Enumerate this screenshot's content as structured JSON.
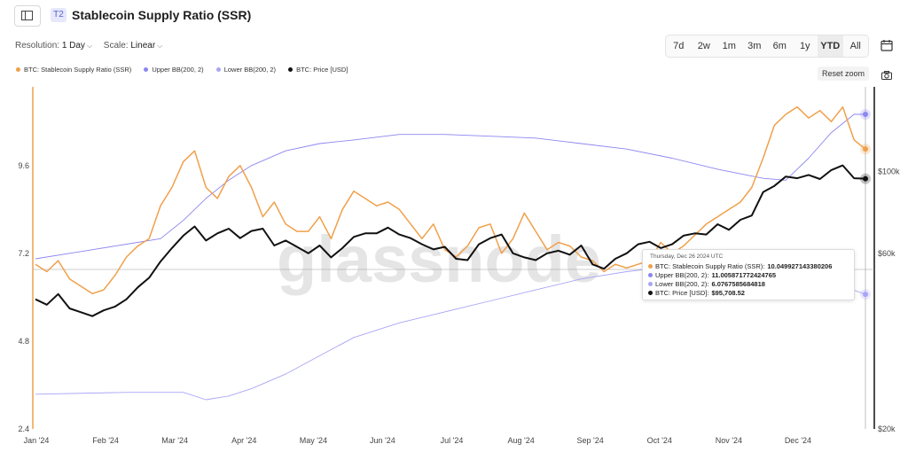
{
  "header": {
    "tier_badge": "T2",
    "title": "Stablecoin Supply Ratio (SSR)",
    "resolution_label": "Resolution:",
    "resolution_value": "1 Day",
    "scale_label": "Scale:",
    "scale_value": "Linear"
  },
  "ranges": [
    {
      "label": "7d",
      "active": false
    },
    {
      "label": "2w",
      "active": false
    },
    {
      "label": "1m",
      "active": false
    },
    {
      "label": "3m",
      "active": false
    },
    {
      "label": "6m",
      "active": false
    },
    {
      "label": "1y",
      "active": false
    },
    {
      "label": "YTD",
      "active": true
    },
    {
      "label": "All",
      "active": false
    }
  ],
  "reset_zoom_label": "Reset zoom",
  "watermark": "glassnode",
  "colors": {
    "ssr": "#f0a04b",
    "upper_bb": "#8c86f0",
    "lower_bb": "#a9a5f6",
    "price": "#111111",
    "left_axis": "#f0a04b",
    "right_axis": "#111111"
  },
  "chart_data": {
    "type": "line",
    "x_label_ticks": [
      "Jan '24",
      "Feb '24",
      "Mar '24",
      "Apr '24",
      "May '24",
      "Jun '24",
      "Jul '24",
      "Aug '24",
      "Sep '24",
      "Oct '24",
      "Nov '24",
      "Dec '24"
    ],
    "x_range_days": [
      0,
      365
    ],
    "left_axis": {
      "ticks": [
        "9.6",
        "7.2",
        "4.8",
        "2.4"
      ],
      "ylim": [
        2.4,
        11.75
      ]
    },
    "right_axis": {
      "ticks": [
        "$100k",
        "$60k",
        "$20k"
      ],
      "scale": "log",
      "ylim": [
        20000,
        170000
      ]
    },
    "series": [
      {
        "name": "BTC: Stablecoin Supply Ratio (SSR)",
        "axis": "left",
        "color": "#f0a04b",
        "points": [
          [
            0,
            6.9
          ],
          [
            5,
            6.7
          ],
          [
            10,
            7.0
          ],
          [
            15,
            6.5
          ],
          [
            20,
            6.3
          ],
          [
            25,
            6.1
          ],
          [
            30,
            6.2
          ],
          [
            35,
            6.6
          ],
          [
            40,
            7.1
          ],
          [
            45,
            7.4
          ],
          [
            50,
            7.6
          ],
          [
            55,
            8.5
          ],
          [
            60,
            9.0
          ],
          [
            65,
            9.7
          ],
          [
            70,
            10.0
          ],
          [
            75,
            9.0
          ],
          [
            80,
            8.7
          ],
          [
            85,
            9.3
          ],
          [
            90,
            9.6
          ],
          [
            95,
            9.0
          ],
          [
            100,
            8.2
          ],
          [
            105,
            8.6
          ],
          [
            110,
            8.0
          ],
          [
            115,
            7.8
          ],
          [
            120,
            7.8
          ],
          [
            125,
            8.2
          ],
          [
            130,
            7.6
          ],
          [
            135,
            8.4
          ],
          [
            140,
            8.9
          ],
          [
            145,
            8.7
          ],
          [
            150,
            8.5
          ],
          [
            155,
            8.6
          ],
          [
            160,
            8.4
          ],
          [
            165,
            8.0
          ],
          [
            170,
            7.6
          ],
          [
            175,
            8.0
          ],
          [
            180,
            7.3
          ],
          [
            185,
            7.1
          ],
          [
            190,
            7.4
          ],
          [
            195,
            7.9
          ],
          [
            200,
            8.0
          ],
          [
            205,
            7.2
          ],
          [
            210,
            7.6
          ],
          [
            215,
            8.3
          ],
          [
            220,
            7.8
          ],
          [
            225,
            7.3
          ],
          [
            230,
            7.5
          ],
          [
            235,
            7.4
          ],
          [
            240,
            7.1
          ],
          [
            245,
            7.0
          ],
          [
            250,
            6.7
          ],
          [
            255,
            6.9
          ],
          [
            260,
            6.8
          ],
          [
            265,
            6.9
          ],
          [
            270,
            7.0
          ],
          [
            275,
            7.5
          ],
          [
            280,
            7.2
          ],
          [
            285,
            7.4
          ],
          [
            290,
            7.7
          ],
          [
            295,
            8.0
          ],
          [
            300,
            8.2
          ],
          [
            305,
            8.4
          ],
          [
            310,
            8.6
          ],
          [
            315,
            9.0
          ],
          [
            320,
            9.8
          ],
          [
            325,
            10.7
          ],
          [
            330,
            11.0
          ],
          [
            335,
            11.2
          ],
          [
            340,
            10.9
          ],
          [
            345,
            11.1
          ],
          [
            350,
            10.8
          ],
          [
            355,
            11.2
          ],
          [
            360,
            10.3
          ],
          [
            365,
            10.05
          ]
        ]
      },
      {
        "name": "Upper BB(200, 2)",
        "axis": "left",
        "color": "#8c86f0",
        "points": [
          [
            0,
            7.05
          ],
          [
            20,
            7.25
          ],
          [
            40,
            7.45
          ],
          [
            55,
            7.6
          ],
          [
            65,
            8.1
          ],
          [
            75,
            8.7
          ],
          [
            85,
            9.2
          ],
          [
            95,
            9.6
          ],
          [
            110,
            10.0
          ],
          [
            125,
            10.2
          ],
          [
            140,
            10.3
          ],
          [
            160,
            10.45
          ],
          [
            180,
            10.45
          ],
          [
            200,
            10.4
          ],
          [
            220,
            10.35
          ],
          [
            240,
            10.2
          ],
          [
            260,
            10.05
          ],
          [
            280,
            9.8
          ],
          [
            300,
            9.5
          ],
          [
            320,
            9.25
          ],
          [
            330,
            9.2
          ],
          [
            340,
            9.8
          ],
          [
            350,
            10.5
          ],
          [
            360,
            11.0
          ],
          [
            365,
            11.0
          ]
        ]
      },
      {
        "name": "Lower BB(200, 2)",
        "axis": "left",
        "color": "#a9a5f6",
        "points": [
          [
            0,
            3.35
          ],
          [
            40,
            3.4
          ],
          [
            65,
            3.4
          ],
          [
            75,
            3.2
          ],
          [
            85,
            3.3
          ],
          [
            95,
            3.5
          ],
          [
            110,
            3.9
          ],
          [
            125,
            4.4
          ],
          [
            140,
            4.9
          ],
          [
            160,
            5.3
          ],
          [
            180,
            5.6
          ],
          [
            200,
            5.9
          ],
          [
            220,
            6.2
          ],
          [
            240,
            6.5
          ],
          [
            260,
            6.7
          ],
          [
            280,
            6.85
          ],
          [
            300,
            6.95
          ],
          [
            320,
            7.0
          ],
          [
            340,
            6.9
          ],
          [
            355,
            6.3
          ],
          [
            365,
            6.08
          ]
        ]
      },
      {
        "name": "BTC: Price [USD]",
        "axis": "right",
        "color": "#111111",
        "points": [
          [
            0,
            45000
          ],
          [
            5,
            43500
          ],
          [
            10,
            46500
          ],
          [
            15,
            42500
          ],
          [
            20,
            41500
          ],
          [
            25,
            40500
          ],
          [
            30,
            42000
          ],
          [
            35,
            43000
          ],
          [
            40,
            45000
          ],
          [
            45,
            48500
          ],
          [
            50,
            51500
          ],
          [
            55,
            57000
          ],
          [
            60,
            62000
          ],
          [
            65,
            67000
          ],
          [
            70,
            71000
          ],
          [
            75,
            65000
          ],
          [
            80,
            68000
          ],
          [
            85,
            70000
          ],
          [
            90,
            66000
          ],
          [
            95,
            69000
          ],
          [
            100,
            70000
          ],
          [
            105,
            63000
          ],
          [
            110,
            65000
          ],
          [
            115,
            62500
          ],
          [
            120,
            60000
          ],
          [
            125,
            63000
          ],
          [
            130,
            58500
          ],
          [
            135,
            62000
          ],
          [
            140,
            66500
          ],
          [
            145,
            68000
          ],
          [
            150,
            68000
          ],
          [
            155,
            70500
          ],
          [
            160,
            67500
          ],
          [
            165,
            66000
          ],
          [
            170,
            63500
          ],
          [
            175,
            61500
          ],
          [
            180,
            62500
          ],
          [
            185,
            58000
          ],
          [
            190,
            57500
          ],
          [
            195,
            63500
          ],
          [
            200,
            66000
          ],
          [
            205,
            67500
          ],
          [
            210,
            60000
          ],
          [
            215,
            58500
          ],
          [
            220,
            57500
          ],
          [
            225,
            60000
          ],
          [
            230,
            61000
          ],
          [
            235,
            59500
          ],
          [
            240,
            63000
          ],
          [
            245,
            56000
          ],
          [
            250,
            54500
          ],
          [
            255,
            58000
          ],
          [
            260,
            60000
          ],
          [
            265,
            63500
          ],
          [
            270,
            64500
          ],
          [
            275,
            62000
          ],
          [
            280,
            63500
          ],
          [
            285,
            67000
          ],
          [
            290,
            68000
          ],
          [
            295,
            67500
          ],
          [
            300,
            72000
          ],
          [
            305,
            69500
          ],
          [
            310,
            74000
          ],
          [
            315,
            76000
          ],
          [
            320,
            88000
          ],
          [
            325,
            91500
          ],
          [
            330,
            97000
          ],
          [
            335,
            96000
          ],
          [
            340,
            98000
          ],
          [
            345,
            95500
          ],
          [
            350,
            101000
          ],
          [
            355,
            104000
          ],
          [
            360,
            96000
          ],
          [
            365,
            95708.52
          ]
        ]
      }
    ],
    "crosshair_date_day": 365,
    "tooltip": {
      "date": "Thursday, Dec 26 2024 UTC",
      "rows": [
        {
          "label": "BTC: Stablecoin Supply Ratio (SSR):",
          "value": "10.049927143380206",
          "color": "#f0a04b"
        },
        {
          "label": "Upper BB(200, 2):",
          "value": "11.005871772424765",
          "color": "#8c86f0"
        },
        {
          "label": "Lower BB(200, 2):",
          "value": "6.0767585684818",
          "color": "#a9a5f6"
        },
        {
          "label": "BTC: Price [USD]:",
          "value": "$95,708.52",
          "color": "#111111"
        }
      ]
    },
    "legend_position": "top-left",
    "grid": false
  }
}
